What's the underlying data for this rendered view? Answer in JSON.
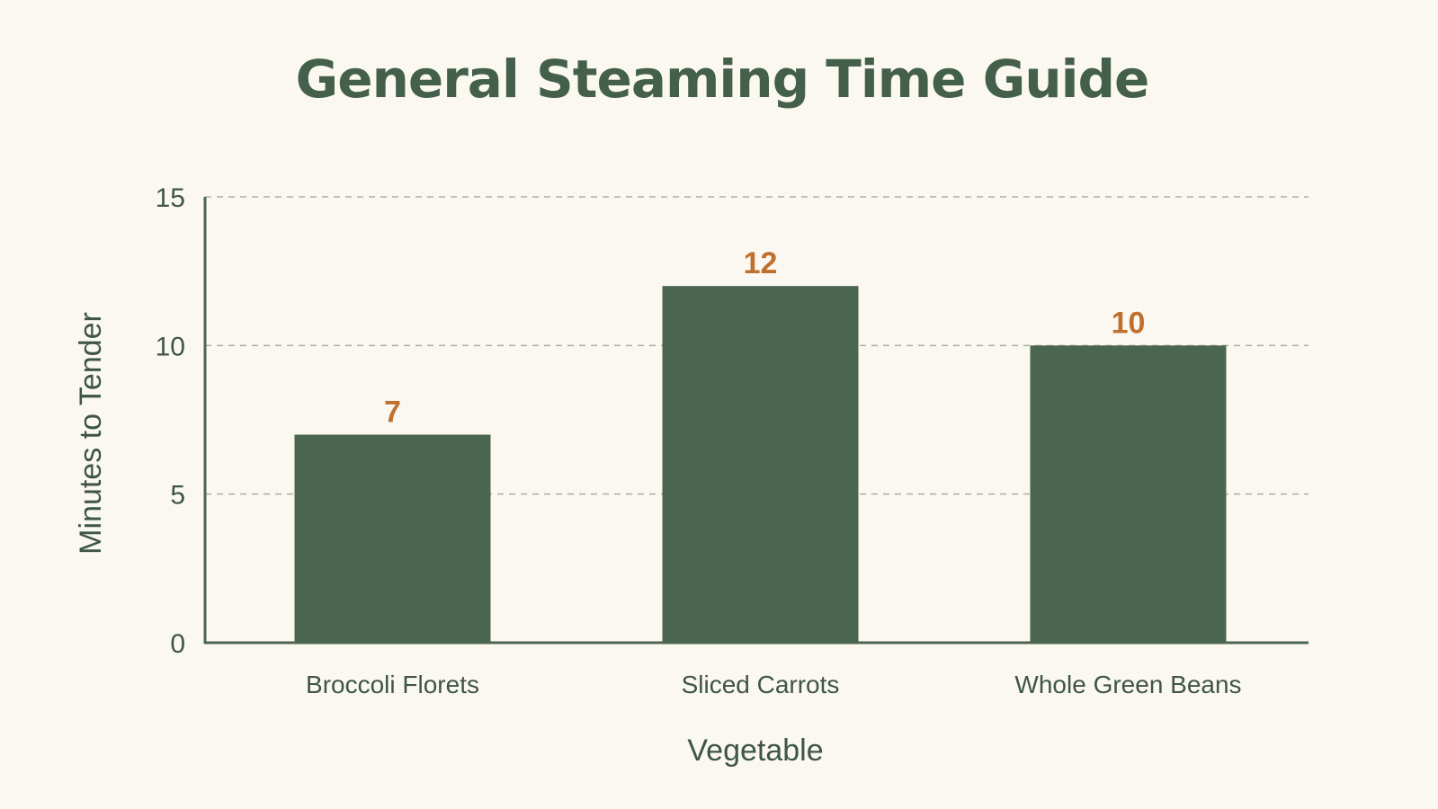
{
  "colors": {
    "background": "#fbf8f2",
    "bar": "#4b6650",
    "title": "#44604b",
    "axis": "#4b6650",
    "text": "#3f5545",
    "grid": "#b0ada6",
    "value_label": "#c0702e"
  },
  "chart_data": {
    "type": "bar",
    "title": "General Steaming Time Guide",
    "xlabel": "Vegetable",
    "ylabel": "Minutes to Tender",
    "categories": [
      "Broccoli Florets",
      "Sliced Carrots",
      "Whole Green Beans"
    ],
    "values": [
      7,
      12,
      10
    ],
    "value_labels": [
      "7",
      "12",
      "10"
    ],
    "y_ticks": [
      0,
      5,
      10,
      15
    ],
    "y_tick_labels": [
      "0",
      "5",
      "10",
      "15"
    ],
    "ylim": [
      0,
      15
    ],
    "grid": true,
    "grid_style": "dashed",
    "legend": "none"
  }
}
